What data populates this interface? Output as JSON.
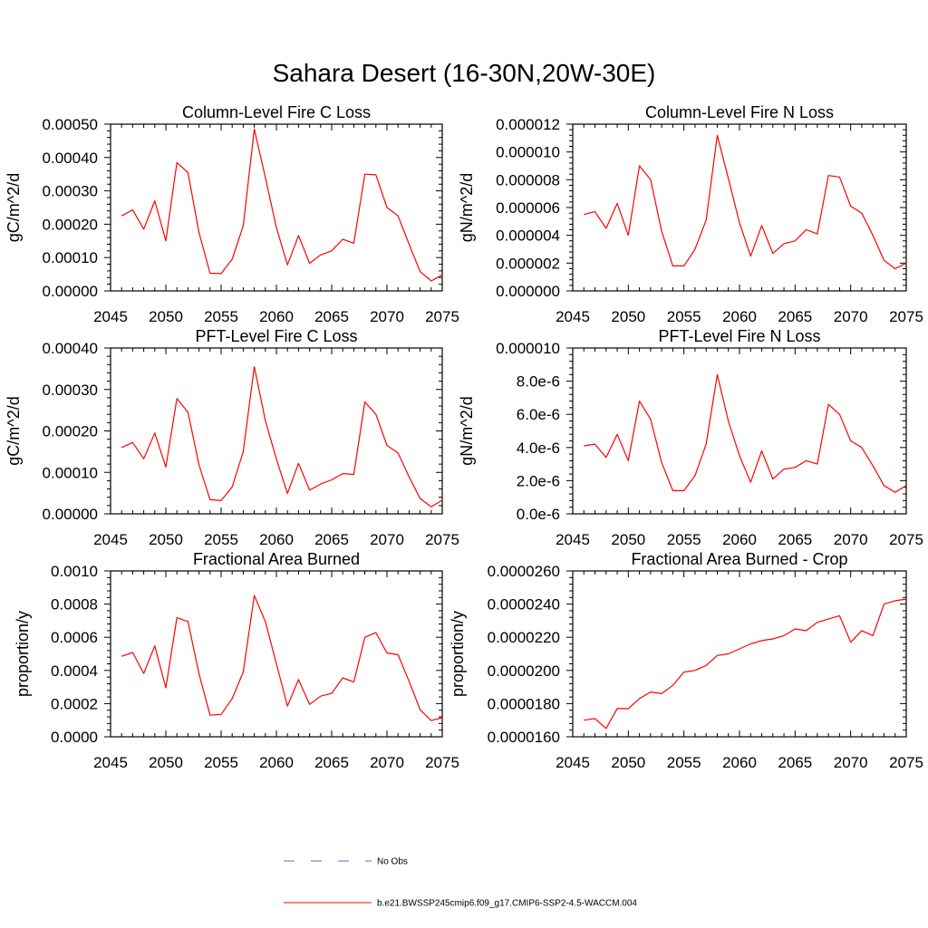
{
  "page_title": "Sahara Desert (16-30N,20W-30E)",
  "colors": {
    "model_line": "#ff0000",
    "obs_line": "#6666cc",
    "axis": "#000000"
  },
  "legend": [
    {
      "label": "No Obs",
      "style": "dashed",
      "color": "#6666cc"
    },
    {
      "label": "b.e21.BWSSP245cmip6.f09_g17.CMIP6-SSP2-4.5-WACCM.004",
      "style": "solid",
      "color": "#ff0000"
    }
  ],
  "chart_data": [
    {
      "type": "line",
      "title": "Column-Level Fire C Loss",
      "xlabel": "",
      "ylabel": "gC/m^2/d",
      "xlim": [
        2045,
        2075
      ],
      "ylim": [
        0,
        0.0005
      ],
      "xticks": [
        "2045",
        "2050",
        "2055",
        "2060",
        "2065",
        "2070",
        "2075"
      ],
      "yticks": [
        "0.00000",
        "0.00010",
        "0.00020",
        "0.00030",
        "0.00040",
        "0.00050"
      ],
      "x": [
        2046,
        2047,
        2048,
        2049,
        2050,
        2051,
        2052,
        2053,
        2054,
        2055,
        2056,
        2057,
        2058,
        2059,
        2060,
        2061,
        2062,
        2063,
        2064,
        2065,
        2066,
        2067,
        2068,
        2069,
        2070,
        2071,
        2072,
        2073,
        2074,
        2075
      ],
      "series": [
        {
          "name": "b.e21.BWSSP245cmip6.f09_g17.CMIP6-SSP2-4.5-WACCM.004",
          "values": [
            0.000225,
            0.000243,
            0.000185,
            0.00027,
            0.00015,
            0.000385,
            0.000355,
            0.000175,
            5.3e-05,
            5.2e-05,
            9.5e-05,
            0.000195,
            0.000485,
            0.00034,
            0.00019,
            7.8e-05,
            0.000166,
            8.3e-05,
            0.000108,
            0.00012,
            0.000155,
            0.000143,
            0.00035,
            0.000348,
            0.00025,
            0.000225,
            0.00014,
            5.8e-05,
            3e-05,
            4.8e-05
          ]
        }
      ]
    },
    {
      "type": "line",
      "title": "Column-Level Fire N Loss",
      "xlabel": "",
      "ylabel": "gN/m^2/d",
      "xlim": [
        2045,
        2075
      ],
      "ylim": [
        0,
        1.2e-05
      ],
      "xticks": [
        "2045",
        "2050",
        "2055",
        "2060",
        "2065",
        "2070",
        "2075"
      ],
      "yticks": [
        "0.000000",
        "0.000002",
        "0.000004",
        "0.000006",
        "0.000008",
        "0.000010",
        "0.000012"
      ],
      "x": [
        2046,
        2047,
        2048,
        2049,
        2050,
        2051,
        2052,
        2053,
        2054,
        2055,
        2056,
        2057,
        2058,
        2059,
        2060,
        2061,
        2062,
        2063,
        2064,
        2065,
        2066,
        2067,
        2068,
        2069,
        2070,
        2071,
        2072,
        2073,
        2074,
        2075
      ],
      "series": [
        {
          "name": "b.e21.BWSSP245cmip6.f09_g17.CMIP6-SSP2-4.5-WACCM.004",
          "values": [
            5.5e-06,
            5.7e-06,
            4.5e-06,
            6.3e-06,
            4e-06,
            9e-06,
            8e-06,
            4.3e-06,
            1.8e-06,
            1.8e-06,
            3e-06,
            5.1e-06,
            1.12e-05,
            8.1e-06,
            4.9e-06,
            2.5e-06,
            4.7e-06,
            2.7e-06,
            3.4e-06,
            3.6e-06,
            4.4e-06,
            4.1e-06,
            8.3e-06,
            8.2e-06,
            6.1e-06,
            5.6e-06,
            4e-06,
            2.2e-06,
            1.6e-06,
            2e-06
          ]
        }
      ]
    },
    {
      "type": "line",
      "title": "PFT-Level Fire C Loss",
      "xlabel": "",
      "ylabel": "gC/m^2/d",
      "xlim": [
        2045,
        2075
      ],
      "ylim": [
        0,
        0.0004
      ],
      "xticks": [
        "2045",
        "2050",
        "2055",
        "2060",
        "2065",
        "2070",
        "2075"
      ],
      "yticks": [
        "0.00000",
        "0.00010",
        "0.00020",
        "0.00030",
        "0.00040"
      ],
      "x": [
        2046,
        2047,
        2048,
        2049,
        2050,
        2051,
        2052,
        2053,
        2054,
        2055,
        2056,
        2057,
        2058,
        2059,
        2060,
        2061,
        2062,
        2063,
        2064,
        2065,
        2066,
        2067,
        2068,
        2069,
        2070,
        2071,
        2072,
        2073,
        2074,
        2075
      ],
      "series": [
        {
          "name": "b.e21.BWSSP245cmip6.f09_g17.CMIP6-SSP2-4.5-WACCM.004",
          "values": [
            0.00016,
            0.000172,
            0.000133,
            0.000195,
            0.000113,
            0.000278,
            0.000245,
            0.000118,
            3.4e-05,
            3.2e-05,
            6.5e-05,
            0.00015,
            0.000355,
            0.000225,
            0.000132,
            4.9e-05,
            0.000122,
            5.7e-05,
            7.2e-05,
            8.2e-05,
            9.7e-05,
            9.5e-05,
            0.00027,
            0.00024,
            0.000165,
            0.000147,
            8.9e-05,
            3.7e-05,
            1.7e-05,
            3.3e-05
          ]
        }
      ]
    },
    {
      "type": "line",
      "title": "PFT-Level Fire N Loss",
      "xlabel": "",
      "ylabel": "gN/m^2/d",
      "xlim": [
        2045,
        2075
      ],
      "ylim": [
        0,
        1e-05
      ],
      "xticks": [
        "2045",
        "2050",
        "2055",
        "2060",
        "2065",
        "2070",
        "2075"
      ],
      "yticks": [
        "0.0e-6",
        "2.0e-6",
        "4.0e-6",
        "6.0e-6",
        "8.0e-6",
        "0.000010"
      ],
      "x": [
        2046,
        2047,
        2048,
        2049,
        2050,
        2051,
        2052,
        2053,
        2054,
        2055,
        2056,
        2057,
        2058,
        2059,
        2060,
        2061,
        2062,
        2063,
        2064,
        2065,
        2066,
        2067,
        2068,
        2069,
        2070,
        2071,
        2072,
        2073,
        2074,
        2075
      ],
      "series": [
        {
          "name": "b.e21.BWSSP245cmip6.f09_g17.CMIP6-SSP2-4.5-WACCM.004",
          "values": [
            4.1e-06,
            4.2e-06,
            3.4e-06,
            4.8e-06,
            3.2e-06,
            6.8e-06,
            5.7e-06,
            3.1e-06,
            1.4e-06,
            1.4e-06,
            2.3e-06,
            4.2e-06,
            8.4e-06,
            5.6e-06,
            3.5e-06,
            1.9e-06,
            3.8e-06,
            2.1e-06,
            2.7e-06,
            2.8e-06,
            3.2e-06,
            3e-06,
            6.6e-06,
            6e-06,
            4.4e-06,
            4e-06,
            2.9e-06,
            1.7e-06,
            1.3e-06,
            1.7e-06
          ]
        }
      ]
    },
    {
      "type": "line",
      "title": "Fractional Area Burned",
      "xlabel": "",
      "ylabel": "proportion/y",
      "xlim": [
        2045,
        2075
      ],
      "ylim": [
        0,
        0.001
      ],
      "xticks": [
        "2045",
        "2050",
        "2055",
        "2060",
        "2065",
        "2070",
        "2075"
      ],
      "yticks": [
        "0.0000",
        "0.0002",
        "0.0004",
        "0.0006",
        "0.0008",
        "0.0010"
      ],
      "x": [
        2046,
        2047,
        2048,
        2049,
        2050,
        2051,
        2052,
        2053,
        2054,
        2055,
        2056,
        2057,
        2058,
        2059,
        2060,
        2061,
        2062,
        2063,
        2064,
        2065,
        2066,
        2067,
        2068,
        2069,
        2070,
        2071,
        2072,
        2073,
        2074,
        2075
      ],
      "series": [
        {
          "name": "b.e21.BWSSP245cmip6.f09_g17.CMIP6-SSP2-4.5-WACCM.004",
          "values": [
            0.000485,
            0.000508,
            0.000382,
            0.000548,
            0.000295,
            0.000718,
            0.000695,
            0.00038,
            0.00013,
            0.000135,
            0.00023,
            0.00039,
            0.000852,
            0.000695,
            0.00044,
            0.000185,
            0.000345,
            0.000195,
            0.000245,
            0.000262,
            0.000355,
            0.00033,
            0.0006,
            0.000628,
            0.000505,
            0.000495,
            0.000335,
            0.000163,
            9.8e-05,
            0.000115
          ]
        }
      ]
    },
    {
      "type": "line",
      "title": "Fractional Area Burned - Crop",
      "xlabel": "",
      "ylabel": "proportion/y",
      "xlim": [
        2045,
        2075
      ],
      "ylim": [
        1.6e-05,
        2.6e-05
      ],
      "xticks": [
        "2045",
        "2050",
        "2055",
        "2060",
        "2065",
        "2070",
        "2075"
      ],
      "yticks": [
        "0.0000160",
        "0.0000180",
        "0.0000200",
        "0.0000220",
        "0.0000240",
        "0.0000260"
      ],
      "x": [
        2046,
        2047,
        2048,
        2049,
        2050,
        2051,
        2052,
        2053,
        2054,
        2055,
        2056,
        2057,
        2058,
        2059,
        2060,
        2061,
        2062,
        2063,
        2064,
        2065,
        2066,
        2067,
        2068,
        2069,
        2070,
        2071,
        2072,
        2073,
        2074,
        2075
      ],
      "series": [
        {
          "name": "b.e21.BWSSP245cmip6.f09_g17.CMIP6-SSP2-4.5-WACCM.004",
          "values": [
            1.7e-05,
            1.71e-05,
            1.65e-05,
            1.77e-05,
            1.77e-05,
            1.83e-05,
            1.87e-05,
            1.86e-05,
            1.91e-05,
            1.99e-05,
            2e-05,
            2.03e-05,
            2.09e-05,
            2.1e-05,
            2.13e-05,
            2.16e-05,
            2.18e-05,
            2.19e-05,
            2.21e-05,
            2.25e-05,
            2.24e-05,
            2.29e-05,
            2.31e-05,
            2.33e-05,
            2.17e-05,
            2.24e-05,
            2.21e-05,
            2.4e-05,
            2.42e-05,
            2.43e-05
          ]
        }
      ]
    }
  ]
}
